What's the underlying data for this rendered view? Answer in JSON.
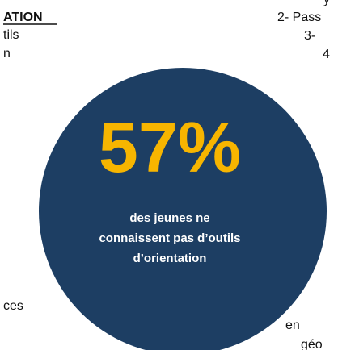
{
  "heading": "ATION",
  "left_fragments": [
    "tils",
    "n",
    "ces"
  ],
  "right_fragments": [
    "y",
    "2- Pass",
    "3-",
    "4",
    "en",
    "géo"
  ],
  "stat": {
    "figure": "57%",
    "caption": [
      "des jeunes ne",
      "connaissent pas d’outils",
      "d’orientation"
    ]
  }
}
